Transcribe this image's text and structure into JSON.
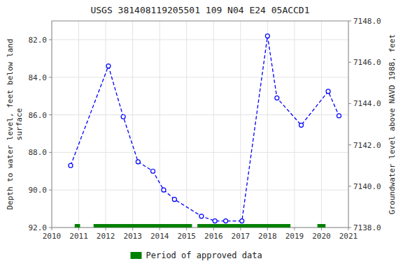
{
  "chart_data": {
    "type": "line",
    "title": "USGS 381408119205501 109  N04 E24 05ACCD1",
    "ylabel": "Depth to water level, feet below land\nsurface",
    "y2label": "Groundwater level above NAVD 1988, feet",
    "xlim": [
      2010,
      2021
    ],
    "xticks": [
      2010,
      2011,
      2012,
      2013,
      2014,
      2015,
      2016,
      2017,
      2018,
      2019,
      2020,
      2021
    ],
    "ylim": [
      92.0,
      81.0
    ],
    "yticks": [
      {
        "value": 82.0,
        "label": "82.0"
      },
      {
        "value": 84.0,
        "label": "84.0"
      },
      {
        "value": 86.0,
        "label": "86.0"
      },
      {
        "value": 88.0,
        "label": "88.0"
      },
      {
        "value": 90.0,
        "label": "90.0"
      },
      {
        "value": 92.0,
        "label": "92.0"
      }
    ],
    "y2lim": [
      7138.0,
      7148.0
    ],
    "y2ticks": [
      {
        "value": 7138.0,
        "label": "7138.0"
      },
      {
        "value": 7140.0,
        "label": "7140.0"
      },
      {
        "value": 7142.0,
        "label": "7142.0"
      },
      {
        "value": 7144.0,
        "label": "7144.0"
      },
      {
        "value": 7146.0,
        "label": "7146.0"
      },
      {
        "value": 7148.0,
        "label": "7148.0"
      }
    ],
    "grid": true,
    "legend": "bottom",
    "series": [
      {
        "type": "line",
        "color": "blue",
        "marker": "circle",
        "line_style": "dashed",
        "x": [
          2010.7,
          2012.1,
          2012.65,
          2013.2,
          2013.75,
          2014.15,
          2014.55,
          2015.55,
          2016.05,
          2016.45,
          2017.05,
          2018.0,
          2018.35,
          2019.25,
          2020.25,
          2020.65
        ],
        "values": [
          88.7,
          83.4,
          86.1,
          88.5,
          89.0,
          90.0,
          90.5,
          91.4,
          91.65,
          91.65,
          91.65,
          81.8,
          85.1,
          86.55,
          84.75,
          86.05
        ]
      },
      {
        "type": "span",
        "name": "Period of approved data",
        "color": "#008000",
        "ranges": [
          [
            2010.85,
            2011.05
          ],
          [
            2011.55,
            2015.2
          ],
          [
            2015.4,
            2018.85
          ],
          [
            2019.85,
            2020.15
          ]
        ]
      }
    ]
  }
}
